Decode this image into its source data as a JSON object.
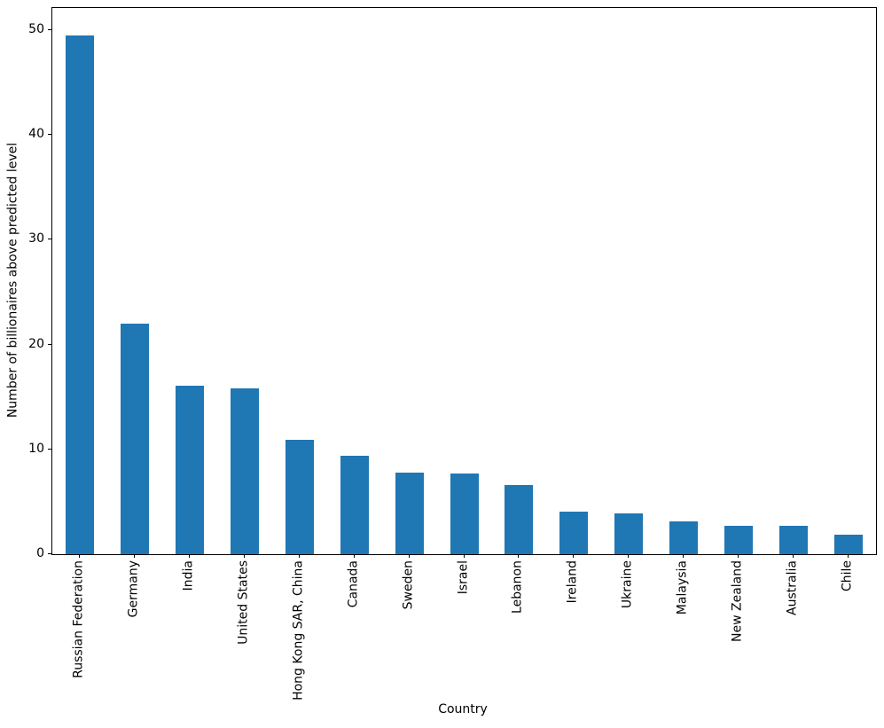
{
  "chart_data": {
    "type": "bar",
    "title": "",
    "xlabel": "Country",
    "ylabel": "Number of billionaires above predicted level",
    "categories": [
      "Russian Federation",
      "Germany",
      "India",
      "United States",
      "Hong Kong SAR, China",
      "Canada",
      "Sweden",
      "Israel",
      "Lebanon",
      "Ireland",
      "Ukraine",
      "Malaysia",
      "New Zealand",
      "Australia",
      "Chile"
    ],
    "values": [
      49.5,
      22.0,
      16.1,
      15.8,
      10.9,
      9.4,
      7.8,
      7.7,
      6.6,
      4.1,
      3.9,
      3.1,
      2.7,
      2.7,
      1.9
    ],
    "yticks": [
      0,
      10,
      20,
      30,
      40,
      50
    ],
    "ylim": [
      0,
      52.1
    ],
    "bar_color": "#1f77b4",
    "axis_color": "#000000",
    "grid": false,
    "legend_position": "none"
  }
}
